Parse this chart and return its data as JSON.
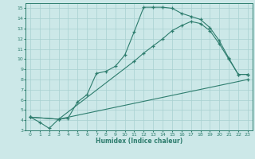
{
  "xlabel": "Humidex (Indice chaleur)",
  "bg_color": "#cce8e8",
  "line_color": "#2e7d6e",
  "grid_color": "#a8d0d0",
  "xlim": [
    -0.5,
    23.5
  ],
  "ylim": [
    3,
    15.5
  ],
  "xticks": [
    0,
    1,
    2,
    3,
    4,
    5,
    6,
    7,
    8,
    9,
    10,
    11,
    12,
    13,
    14,
    15,
    16,
    17,
    18,
    19,
    20,
    21,
    22,
    23
  ],
  "yticks": [
    3,
    4,
    5,
    6,
    7,
    8,
    9,
    10,
    11,
    12,
    13,
    14,
    15
  ],
  "line1_x": [
    0,
    1,
    2,
    3,
    4,
    5,
    6,
    7,
    8,
    9,
    10,
    11,
    12,
    13,
    14,
    15,
    16,
    17,
    18,
    19,
    20,
    21,
    22,
    23
  ],
  "line1_y": [
    4.3,
    3.8,
    3.2,
    4.1,
    4.2,
    5.8,
    6.5,
    8.6,
    8.8,
    9.3,
    10.4,
    12.7,
    15.1,
    15.1,
    15.1,
    15.0,
    14.5,
    14.2,
    13.9,
    13.1,
    11.8,
    10.1,
    8.5,
    8.5
  ],
  "line2_x": [
    0,
    3,
    11,
    12,
    13,
    14,
    15,
    16,
    17,
    18,
    19,
    20,
    21,
    22,
    23
  ],
  "line2_y": [
    4.3,
    4.1,
    9.8,
    10.6,
    11.3,
    12.0,
    12.8,
    13.3,
    13.7,
    13.5,
    12.8,
    11.5,
    10.0,
    8.5,
    8.5
  ],
  "line3_x": [
    0,
    3,
    23
  ],
  "line3_y": [
    4.3,
    4.1,
    8.0
  ]
}
